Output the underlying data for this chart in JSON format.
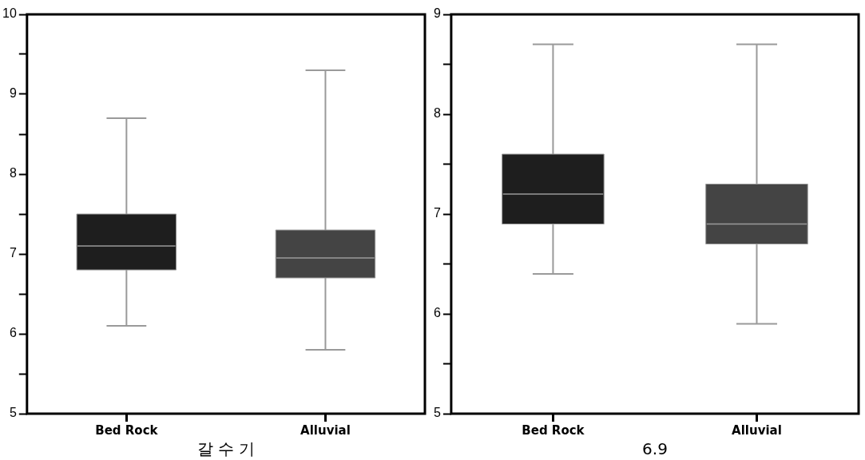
{
  "chart_data": [
    {
      "type": "box",
      "xlabel": "갈 수 기",
      "categories": [
        "Bed Rock",
        "Alluvial"
      ],
      "colors": [
        "#1e1e1e",
        "#444444"
      ],
      "boxes": [
        {
          "low": 6.1,
          "q1": 6.8,
          "median": 7.1,
          "q3": 7.5,
          "high": 8.7
        },
        {
          "low": 5.8,
          "q1": 6.7,
          "median": 6.95,
          "q3": 7.3,
          "high": 9.3
        }
      ],
      "ylim": [
        5,
        10
      ],
      "yticks": [
        5,
        {
          "value": 5.5,
          "label": null
        },
        6,
        {
          "value": 6.5,
          "label": null
        },
        7,
        {
          "value": 7.5,
          "label": null
        },
        8,
        {
          "value": 8.5,
          "label": null
        },
        9,
        {
          "value": 9.5,
          "label": null
        },
        10
      ]
    },
    {
      "type": "box",
      "xlabel": "6.9",
      "categories": [
        "Bed Rock",
        "Alluvial"
      ],
      "colors": [
        "#1e1e1e",
        "#444444"
      ],
      "boxes": [
        {
          "low": 6.4,
          "q1": 6.9,
          "median": 7.2,
          "q3": 7.6,
          "high": 8.7
        },
        {
          "low": 5.9,
          "q1": 6.7,
          "median": 6.9,
          "q3": 7.3,
          "high": 8.7
        }
      ],
      "ylim": [
        5,
        9
      ],
      "yticks": [
        5,
        {
          "value": 5.5,
          "label": null
        },
        6,
        {
          "value": 6.5,
          "label": null
        },
        7,
        {
          "value": 7.5,
          "label": null
        },
        8,
        {
          "value": 8.5,
          "label": null
        },
        9
      ]
    }
  ]
}
